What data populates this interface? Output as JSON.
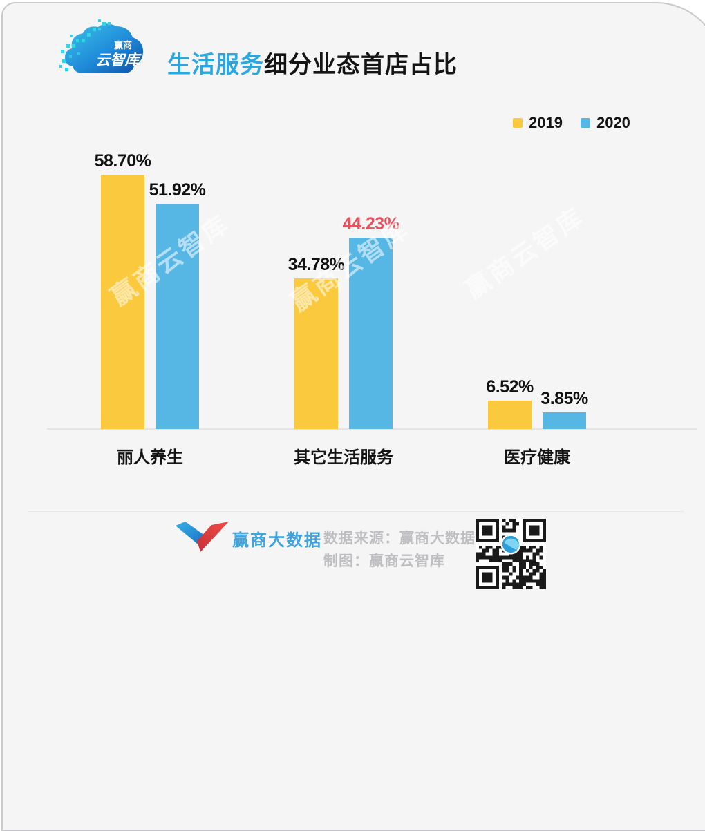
{
  "header": {
    "logo_line1": "赢商",
    "logo_line2": "云智库",
    "title_highlight": "生活服务",
    "title_rest": "细分业态首店占比"
  },
  "legend": [
    {
      "label": "2019",
      "color": "#fac93d"
    },
    {
      "label": "2020",
      "color": "#57b7e4"
    }
  ],
  "chart_data": {
    "type": "bar",
    "title": "生活服务细分业态首店占比",
    "categories": [
      "丽人养生",
      "其它生活服务",
      "医疗健康"
    ],
    "series": [
      {
        "name": "2019",
        "color": "#fac93d",
        "values": [
          58.7,
          34.78,
          6.52
        ],
        "labels": [
          "58.70%",
          "34.78%",
          "6.52%"
        ]
      },
      {
        "name": "2020",
        "color": "#57b7e4",
        "values": [
          51.92,
          44.23,
          3.85
        ],
        "labels": [
          "51.92%",
          "44.23%",
          "3.85%"
        ]
      }
    ],
    "highlight": {
      "series_index": 1,
      "category_index": 1,
      "label_color": "#e8505b"
    },
    "value_label_color": "#111111",
    "ylim": [
      0,
      60
    ],
    "grid": false,
    "legend_position": "top-right"
  },
  "watermark": {
    "text": "赢商云智库"
  },
  "footer": {
    "brand": "赢商大数据",
    "source": "数据来源：赢商大数据",
    "credit": "制图：赢商云智库"
  }
}
